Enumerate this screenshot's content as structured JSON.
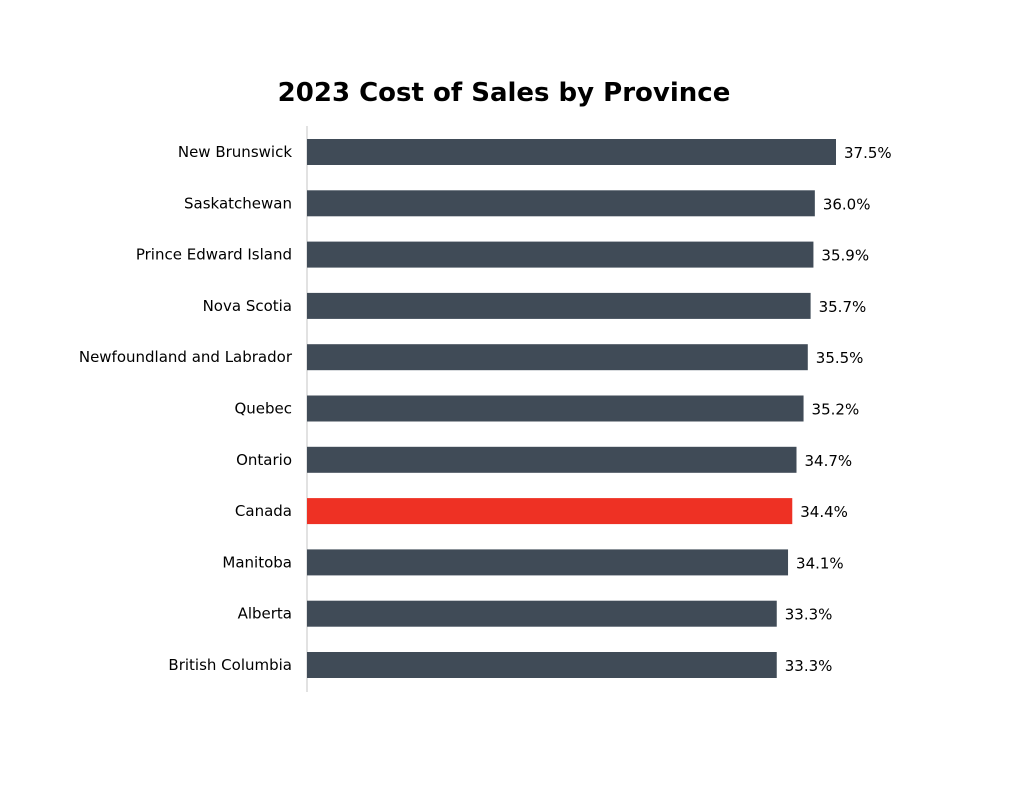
{
  "chart_data": {
    "type": "bar",
    "orientation": "horizontal",
    "title": "2023 Cost of Sales by Province",
    "xlabel": "",
    "ylabel": "",
    "grid": false,
    "legend": "none",
    "xlim": [
      0,
      37.5
    ],
    "categories": [
      "New Brunswick",
      "Saskatchewan",
      "Prince Edward Island",
      "Nova Scotia",
      "Newfoundland and Labrador",
      "Quebec",
      "Ontario",
      "Canada",
      "Manitoba",
      "Alberta",
      "British Columbia"
    ],
    "values": [
      37.5,
      36.0,
      35.9,
      35.7,
      35.5,
      35.2,
      34.7,
      34.4,
      34.1,
      33.3,
      33.3
    ],
    "value_labels": [
      "37.5%",
      "36.0%",
      "35.9%",
      "35.7%",
      "35.5%",
      "35.2%",
      "34.7%",
      "34.4%",
      "34.1%",
      "33.3%",
      "33.3%"
    ],
    "highlight_category": "Canada",
    "colors": {
      "bar": "#404b57",
      "highlight": "#ee3124",
      "axis": "#d9d9d9",
      "text": "#000000"
    }
  }
}
